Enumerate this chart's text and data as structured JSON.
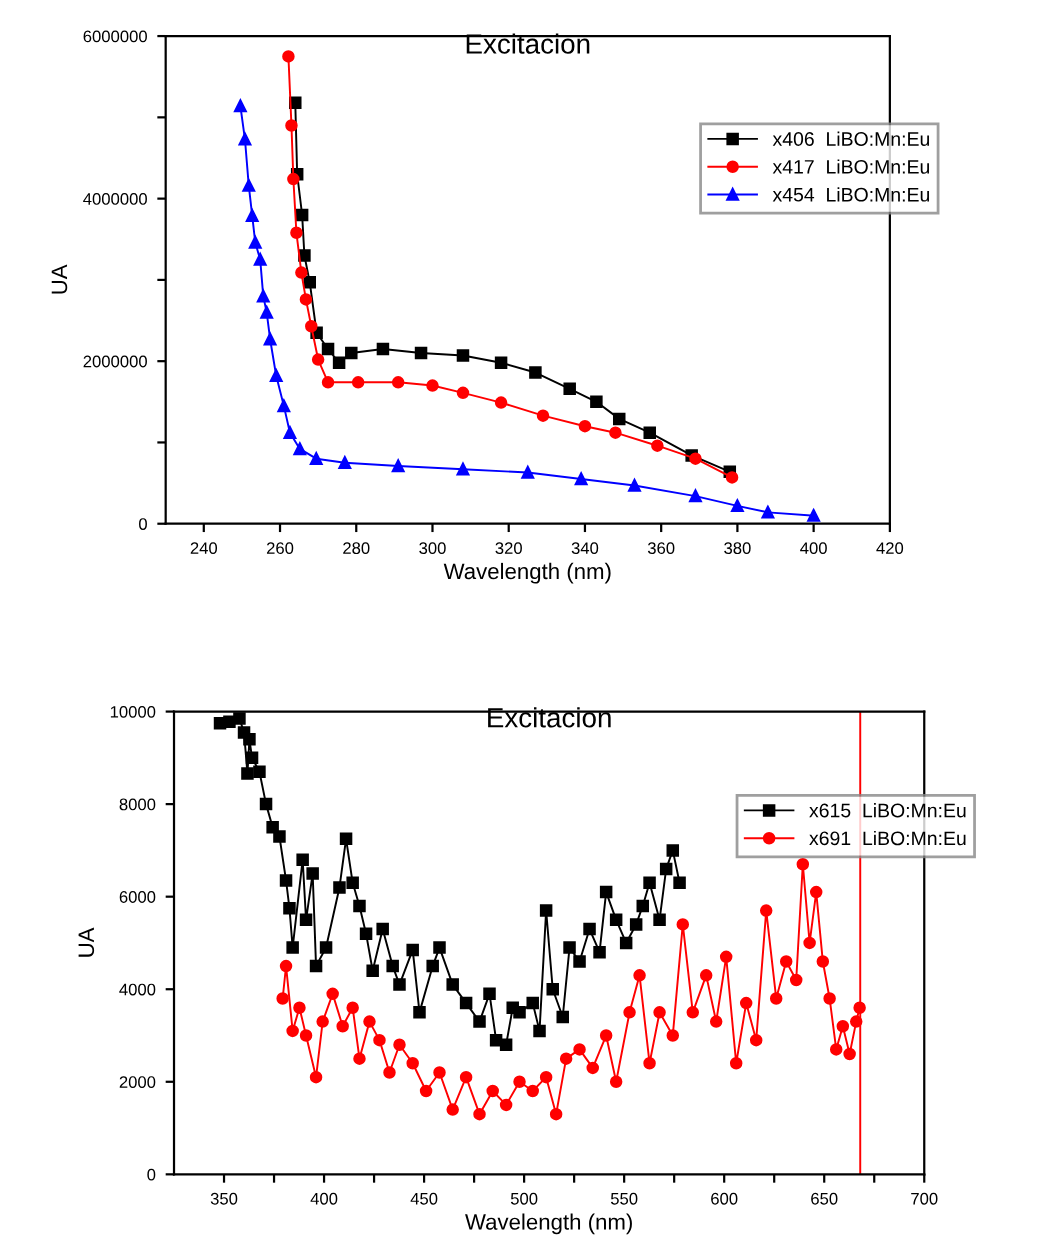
{
  "chart_data": [
    {
      "type": "line",
      "title": "Excitacion",
      "xlabel": "Wavelength (nm)",
      "ylabel": "UA",
      "xlim": [
        230,
        420
      ],
      "xticks": [
        240,
        260,
        280,
        300,
        320,
        340,
        360,
        380,
        400,
        420
      ],
      "ylim": [
        0,
        6000000
      ],
      "yticks": [
        0,
        {
          "value": 1000000,
          "label": null
        },
        2000000,
        {
          "value": 3000000,
          "label": null
        },
        4000000,
        {
          "value": 5000000,
          "label": null
        },
        6000000
      ],
      "grid": false,
      "legend": "top right",
      "line_style": "solid",
      "series": [
        {
          "name": "x406  LiBO:Mn:Eu",
          "color": "#000000",
          "marker": "square",
          "x": [
            264,
            264.5,
            265.8,
            266.4,
            267.8,
            269.6,
            272.6,
            275.5,
            278.7,
            287,
            297,
            308,
            318,
            327,
            336,
            343,
            349,
            357,
            368,
            378
          ],
          "values": [
            5180000,
            4300000,
            3800000,
            3300000,
            2970000,
            2350000,
            2150000,
            1980000,
            2100000,
            2150000,
            2100000,
            2070000,
            1980000,
            1860000,
            1660000,
            1500000,
            1290000,
            1120000,
            840000,
            640000
          ]
        },
        {
          "name": "x417  LiBO:Mn:Eu",
          "color": "#ff0000",
          "marker": "circle",
          "x": [
            262.2,
            263,
            263.5,
            264.3,
            265.6,
            266.8,
            268.2,
            270,
            272.6,
            280.5,
            291,
            300,
            308,
            318,
            329,
            340,
            348,
            359,
            369,
            378.6
          ],
          "values": [
            5750000,
            4900000,
            4240000,
            3580000,
            3090000,
            2760000,
            2430000,
            2020000,
            1740000,
            1740000,
            1740000,
            1700000,
            1610000,
            1490000,
            1330000,
            1200000,
            1120000,
            960000,
            800000,
            570000
          ]
        },
        {
          "name": "x454  LiBO:Mn:Eu",
          "color": "#0000ff",
          "marker": "triangle",
          "x": [
            249.6,
            250.8,
            251.8,
            252.7,
            253.5,
            254.8,
            255.6,
            256.5,
            257.4,
            259,
            261,
            262.6,
            265.2,
            269.5,
            277,
            291,
            308,
            325,
            339,
            353,
            369,
            380,
            388,
            400
          ],
          "values": [
            5140000,
            4730000,
            4160000,
            3790000,
            3460000,
            3250000,
            2800000,
            2600000,
            2270000,
            1820000,
            1450000,
            1120000,
            920000,
            800000,
            750000,
            710000,
            670000,
            630000,
            550000,
            470000,
            340000,
            220000,
            140000,
            100000
          ]
        }
      ]
    },
    {
      "type": "line",
      "title": "Excitacion",
      "xlabel": "Wavelength (nm)",
      "ylabel": "UA",
      "xlim": [
        325,
        700
      ],
      "xticks": [
        350,
        {
          "value": 375,
          "label": null
        },
        400,
        {
          "value": 425,
          "label": null
        },
        450,
        {
          "value": 475,
          "label": null
        },
        500,
        {
          "value": 525,
          "label": null
        },
        550,
        {
          "value": 575,
          "label": null
        },
        600,
        {
          "value": 625,
          "label": null
        },
        650,
        {
          "value": 675,
          "label": null
        },
        700
      ],
      "ylim": [
        0,
        10000
      ],
      "yticks": [
        0,
        2000,
        4000,
        6000,
        8000,
        10000
      ],
      "grid": false,
      "legend": "top right",
      "line_style": "solid",
      "ref_lines": [
        {
          "axis": "x",
          "value": 668,
          "color": "#ff0000"
        }
      ],
      "series": [
        {
          "name": "x615  LiBO:Mn:Eu",
          "color": "#000000",
          "marker": "square",
          "x": [
            348,
            352.7,
            357.7,
            360,
            361.7,
            362.7,
            364,
            367.7,
            371,
            374.3,
            377.7,
            381,
            382.7,
            384.3,
            389.3,
            391,
            394.3,
            396,
            401,
            407.7,
            411,
            414.3,
            417.7,
            421,
            424.3,
            429.3,
            434.3,
            437.7,
            444.3,
            447.7,
            454.3,
            457.7,
            464.3,
            471,
            477.7,
            482.7,
            486,
            491,
            494.3,
            497.7,
            504.3,
            507.7,
            511,
            514.3,
            519.3,
            522.7,
            527.7,
            532.7,
            537.7,
            541,
            546,
            551,
            556,
            559.3,
            562.7,
            567.7,
            571,
            574.3,
            577.7
          ],
          "values": [
            9750,
            9780,
            9850,
            9550,
            8660,
            9400,
            9000,
            8700,
            8000,
            7500,
            7300,
            6350,
            5750,
            4900,
            6800,
            5500,
            6500,
            4500,
            4900,
            6200,
            7250,
            6300,
            5800,
            5200,
            4400,
            5300,
            4500,
            4100,
            4850,
            3500,
            4500,
            4900,
            4100,
            3700,
            3300,
            3900,
            2900,
            2800,
            3600,
            3500,
            3700,
            3100,
            5700,
            4000,
            3400,
            4900,
            4600,
            5300,
            4800,
            6100,
            5500,
            5000,
            5400,
            5800,
            6300,
            5500,
            6600,
            7000,
            6300
          ]
        },
        {
          "name": "x691  LiBO:Mn:Eu",
          "color": "#ff0000",
          "marker": "circle",
          "x": [
            379.3,
            381,
            384.3,
            387.7,
            391,
            396,
            399.3,
            404.3,
            409.3,
            414.3,
            417.7,
            422.7,
            427.7,
            432.7,
            437.7,
            444.3,
            451,
            457.7,
            464.3,
            471,
            477.7,
            484.3,
            491,
            497.7,
            504.3,
            511,
            516,
            521,
            527.7,
            534.3,
            541,
            546,
            552.7,
            557.7,
            562.7,
            567.7,
            574.3,
            579.3,
            584.3,
            591,
            596,
            601,
            606,
            611,
            616,
            621,
            626,
            631,
            636,
            639.3,
            642.7,
            646,
            649.3,
            652.7,
            656,
            659.3,
            662.7,
            666,
            667.7
          ],
          "values": [
            3800,
            4500,
            3100,
            3600,
            3000,
            2100,
            3300,
            3900,
            3200,
            3600,
            2500,
            3300,
            2900,
            2200,
            2800,
            2400,
            1800,
            2200,
            1400,
            2100,
            1300,
            1800,
            1500,
            2000,
            1800,
            2100,
            1300,
            2500,
            2700,
            2300,
            3000,
            2000,
            3500,
            4300,
            2400,
            3500,
            3000,
            5400,
            3500,
            4300,
            3300,
            4700,
            2400,
            3700,
            2900,
            5700,
            3800,
            4600,
            4200,
            6700,
            5000,
            6100,
            4600,
            3800,
            2700,
            3200,
            2600,
            3300,
            3600
          ]
        }
      ]
    }
  ]
}
